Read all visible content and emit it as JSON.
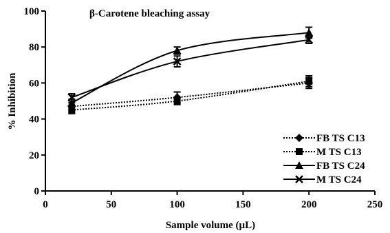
{
  "chart_data": {
    "type": "line",
    "title": "β-Carotene bleaching assay",
    "xlabel": "Sample volume (µL)",
    "ylabel": "% Inhibition",
    "xlim": [
      0,
      250
    ],
    "ylim": [
      0,
      100
    ],
    "xticks": [
      "0",
      "50",
      "100",
      "150",
      "200",
      "250"
    ],
    "yticks": [
      "0",
      "20",
      "40",
      "60",
      "80",
      "100"
    ],
    "x": [
      20,
      100,
      200
    ],
    "grid": false,
    "legend_position": "bottom-right",
    "series": [
      {
        "name": "FB TS C13",
        "marker": "diamond",
        "dash": "dotted",
        "values": [
          47,
          52,
          60
        ],
        "errors": [
          2,
          3,
          3
        ]
      },
      {
        "name": "M TS C13",
        "marker": "square",
        "dash": "dotted",
        "values": [
          45,
          50,
          61
        ],
        "errors": [
          2,
          2,
          3
        ]
      },
      {
        "name": "FB TS C24",
        "marker": "triangle",
        "dash": "solid",
        "values": [
          49,
          78,
          88
        ],
        "errors": [
          2,
          2,
          3
        ]
      },
      {
        "name": "M TS C24",
        "marker": "x",
        "dash": "solid",
        "values": [
          52,
          72,
          84
        ],
        "errors": [
          2,
          3,
          2
        ]
      }
    ]
  }
}
